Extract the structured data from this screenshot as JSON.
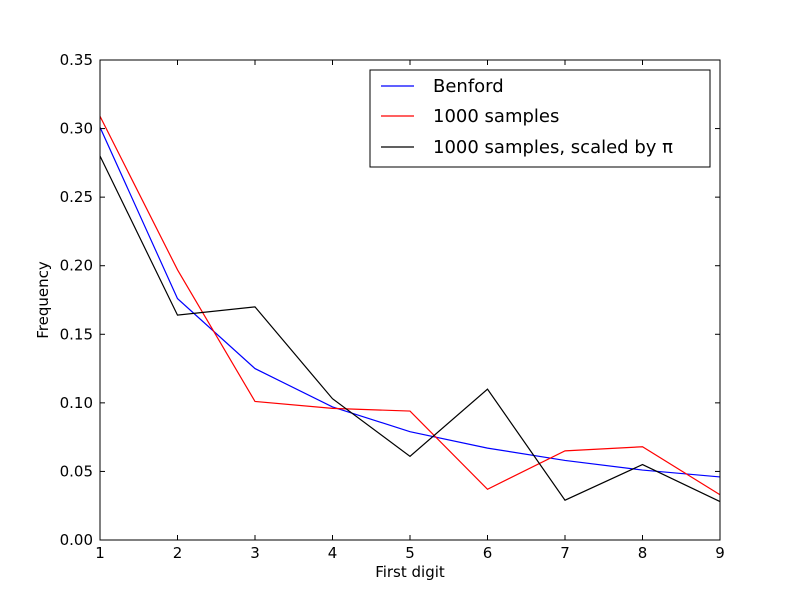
{
  "chart_data": {
    "type": "line",
    "xlabel": "First digit",
    "ylabel": "Frequency",
    "xlim": [
      1,
      9
    ],
    "ylim": [
      0,
      0.35
    ],
    "x_ticks": [
      "1",
      "2",
      "3",
      "4",
      "5",
      "6",
      "7",
      "8",
      "9"
    ],
    "y_ticks": [
      "0.00",
      "0.05",
      "0.10",
      "0.15",
      "0.20",
      "0.25",
      "0.30",
      "0.35"
    ],
    "grid": false,
    "legend_position": "top-right",
    "x": [
      1,
      2,
      3,
      4,
      5,
      6,
      7,
      8,
      9
    ],
    "series": [
      {
        "name": "Benford",
        "color": "#0000ff",
        "values": [
          0.301,
          0.176,
          0.125,
          0.097,
          0.079,
          0.067,
          0.058,
          0.051,
          0.046
        ]
      },
      {
        "name": "1000 samples",
        "color": "#ff0000",
        "values": [
          0.309,
          0.197,
          0.101,
          0.096,
          0.094,
          0.037,
          0.065,
          0.068,
          0.033
        ]
      },
      {
        "name": "1000 samples, scaled by π",
        "color": "#000000",
        "values": [
          0.28,
          0.164,
          0.17,
          0.103,
          0.061,
          0.11,
          0.029,
          0.055,
          0.028
        ]
      }
    ]
  }
}
